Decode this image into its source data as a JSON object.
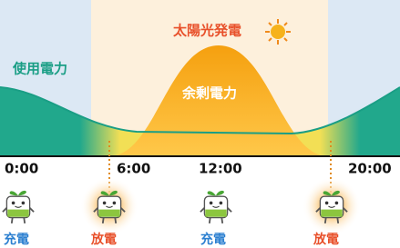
{
  "labels": {
    "solar": "太陽光発電",
    "usage": "使用電力",
    "surplus": "余剰電力"
  },
  "times": [
    "0:00",
    "6:00",
    "12:00",
    "20:00"
  ],
  "modes": [
    "充電",
    "放電",
    "充電",
    "放電"
  ]
}
